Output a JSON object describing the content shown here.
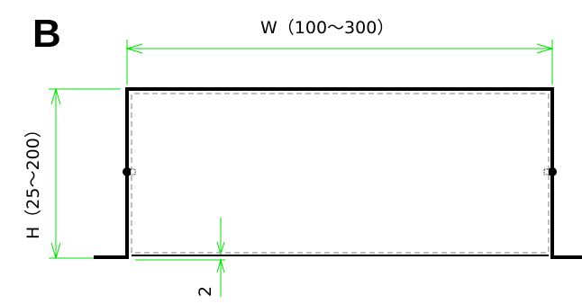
{
  "section_label": "B",
  "dimensions": {
    "width_label": "W（100～300）",
    "height_label": "H（25～200）",
    "thickness_label": "2"
  },
  "colors": {
    "outline": "#000000",
    "dimension_line": "#00e000",
    "inner_dash": "#aaaaaa"
  }
}
